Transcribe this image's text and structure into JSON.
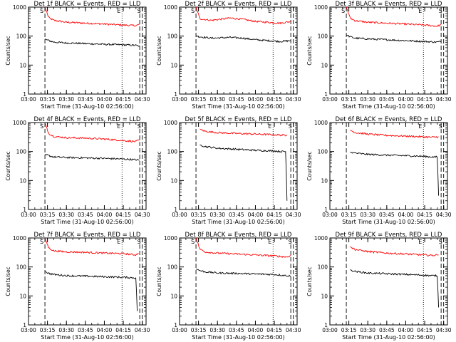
{
  "chart_data": [
    {
      "type": "line",
      "title": "Det 1f BLACK = Events, RED = LLD",
      "xlabel": "Start Time (31-Aug-10 02:56:00)",
      "ylabel": "Counts/sec",
      "yscale": "log",
      "ylim": [
        1,
        1000
      ],
      "xlim": [
        "03:00",
        "04:33"
      ],
      "x_ticks": [
        "03:00",
        "03:15",
        "03:30",
        "03:45",
        "04:00",
        "04:15",
        "04:30"
      ],
      "y_ticks": [
        "1",
        "10",
        "100",
        "1000"
      ],
      "markers": [
        {
          "time": "03:13",
          "label": "S",
          "style": "dashed"
        },
        {
          "time": "04:14",
          "label": "E",
          "style": "dotted"
        },
        {
          "time": "04:28",
          "label": "",
          "style": "dashed"
        },
        {
          "time": "04:30",
          "label": "S",
          "style": "dashed"
        }
      ],
      "series": [
        {
          "color": "#ff0000",
          "x": [
            "03:13",
            "03:16",
            "03:20",
            "03:30",
            "03:45",
            "04:00",
            "04:15",
            "04:25",
            "04:28"
          ],
          "values": [
            1000,
            430,
            350,
            300,
            280,
            260,
            240,
            230,
            260
          ]
        },
        {
          "color": "#000000",
          "x": [
            "03:13",
            "03:16",
            "03:20",
            "03:30",
            "03:45",
            "04:00",
            "04:15",
            "04:25",
            "04:28"
          ],
          "values": [
            80,
            70,
            62,
            58,
            55,
            52,
            50,
            48,
            45
          ]
        }
      ]
    },
    {
      "type": "line",
      "title": "Det 2f BLACK = Events, RED = LLD",
      "xlabel": "Start Time (31-Aug-10 02:56:00)",
      "ylabel": "Counts/sec",
      "yscale": "log",
      "ylim": [
        1,
        1000
      ],
      "xlim": [
        "03:00",
        "04:33"
      ],
      "x_ticks": [
        "03:00",
        "03:15",
        "03:30",
        "03:45",
        "04:00",
        "04:15",
        "04:30"
      ],
      "y_ticks": [
        "1",
        "10",
        "100",
        "1000"
      ],
      "markers": [
        {
          "time": "03:13",
          "label": "S",
          "style": "dashed"
        },
        {
          "time": "04:14",
          "label": "E",
          "style": "dotted"
        },
        {
          "time": "04:28",
          "label": "",
          "style": "dashed"
        },
        {
          "time": "04:30",
          "label": "S",
          "style": "dashed"
        }
      ],
      "series": [
        {
          "color": "#ff0000",
          "x": [
            "03:13",
            "03:16",
            "03:25",
            "03:40",
            "03:50",
            "04:00",
            "04:10",
            "04:20",
            "04:28"
          ],
          "values": [
            1000,
            400,
            350,
            420,
            380,
            320,
            300,
            280,
            320
          ]
        },
        {
          "color": "#000000",
          "x": [
            "03:13",
            "03:16",
            "03:25",
            "03:40",
            "03:50",
            "04:00",
            "04:10",
            "04:20",
            "04:28"
          ],
          "values": [
            100,
            95,
            85,
            90,
            85,
            75,
            70,
            65,
            70
          ]
        }
      ]
    },
    {
      "type": "line",
      "title": "Det 3f BLACK = Events, RED = LLD",
      "xlabel": "Start Time (31-Aug-10 02:56:00)",
      "ylabel": "Counts/sec",
      "yscale": "log",
      "ylim": [
        1,
        1000
      ],
      "xlim": [
        "03:00",
        "04:33"
      ],
      "x_ticks": [
        "03:00",
        "03:15",
        "03:30",
        "03:45",
        "04:00",
        "04:15",
        "04:30"
      ],
      "y_ticks": [
        "1",
        "10",
        "100",
        "1000"
      ],
      "markers": [
        {
          "time": "03:13",
          "label": "S",
          "style": "dashed"
        },
        {
          "time": "04:14",
          "label": "E",
          "style": "dotted"
        },
        {
          "time": "04:28",
          "label": "",
          "style": "dashed"
        },
        {
          "time": "04:30",
          "label": "S",
          "style": "dashed"
        }
      ],
      "series": [
        {
          "color": "#ff0000",
          "x": [
            "03:13",
            "03:16",
            "03:20",
            "03:30",
            "03:45",
            "04:00",
            "04:15",
            "04:25",
            "04:28"
          ],
          "values": [
            1000,
            420,
            340,
            300,
            280,
            260,
            240,
            220,
            250
          ]
        },
        {
          "color": "#000000",
          "x": [
            "03:13",
            "03:16",
            "03:20",
            "03:30",
            "03:45",
            "04:00",
            "04:15",
            "04:25",
            "04:28"
          ],
          "values": [
            110,
            95,
            85,
            80,
            75,
            70,
            65,
            62,
            65
          ]
        }
      ]
    },
    {
      "type": "line",
      "title": "Det 4f BLACK = Events, RED = LLD",
      "xlabel": "Start Time (31-Aug-10 02:56:00)",
      "ylabel": "Counts/sec",
      "yscale": "log",
      "ylim": [
        1,
        1000
      ],
      "xlim": [
        "03:00",
        "04:33"
      ],
      "x_ticks": [
        "03:00",
        "03:15",
        "03:30",
        "03:45",
        "04:00",
        "04:15",
        "04:30"
      ],
      "y_ticks": [
        "1",
        "10",
        "100",
        "1000"
      ],
      "markers": [
        {
          "time": "03:13",
          "label": "S",
          "style": "dashed"
        },
        {
          "time": "04:14",
          "label": "E",
          "style": "dotted"
        },
        {
          "time": "04:28",
          "label": "",
          "style": "dashed"
        },
        {
          "time": "04:30",
          "label": "S",
          "style": "dashed"
        }
      ],
      "series": [
        {
          "color": "#ff0000",
          "x": [
            "03:13",
            "03:16",
            "03:20",
            "03:30",
            "03:45",
            "04:00",
            "04:15",
            "04:25",
            "04:28"
          ],
          "values": [
            1000,
            420,
            330,
            300,
            290,
            270,
            240,
            220,
            260
          ]
        },
        {
          "color": "#000000",
          "x": [
            "03:13",
            "03:16",
            "03:20",
            "03:30",
            "03:45",
            "04:00",
            "04:15",
            "04:25",
            "04:28"
          ],
          "values": [
            80,
            72,
            65,
            62,
            60,
            58,
            55,
            52,
            50
          ]
        }
      ]
    },
    {
      "type": "line",
      "title": "Det 5f BLACK = Events, RED = LLD",
      "xlabel": "Start Time (31-Aug-10 02:56:00)",
      "ylabel": "Counts/sec",
      "yscale": "log",
      "ylim": [
        1,
        1000
      ],
      "xlim": [
        "03:00",
        "04:33"
      ],
      "x_ticks": [
        "03:00",
        "03:15",
        "03:30",
        "03:45",
        "04:00",
        "04:15",
        "04:30"
      ],
      "y_ticks": [
        "1",
        "10",
        "100",
        "1000"
      ],
      "markers": [
        {
          "time": "03:13",
          "label": "",
          "style": "dashed"
        },
        {
          "time": "04:14",
          "label": "E",
          "style": "dotted"
        },
        {
          "time": "04:28",
          "label": "",
          "style": "dashed"
        },
        {
          "time": "04:30",
          "label": "S",
          "style": "dashed"
        }
      ],
      "series": [
        {
          "color": "#ff0000",
          "x": [
            "03:16",
            "03:20",
            "03:30",
            "03:45",
            "04:00",
            "04:15",
            "04:20",
            "04:25"
          ],
          "values": [
            600,
            500,
            450,
            420,
            400,
            380,
            370,
            360
          ]
        },
        {
          "color": "#000000",
          "x": [
            "03:16",
            "03:20",
            "03:30",
            "03:45",
            "04:00",
            "04:15",
            "04:20",
            "04:24",
            "04:25"
          ],
          "values": [
            170,
            150,
            130,
            120,
            110,
            105,
            100,
            100,
            2
          ]
        }
      ]
    },
    {
      "type": "line",
      "title": "Det 6f BLACK = Events, RED = LLD",
      "xlabel": "Start Time (31-Aug-10 02:56:00)",
      "ylabel": "Counts/sec",
      "yscale": "log",
      "ylim": [
        1,
        1000
      ],
      "xlim": [
        "03:00",
        "04:33"
      ],
      "x_ticks": [
        "03:00",
        "03:15",
        "03:30",
        "03:45",
        "04:00",
        "04:15",
        "04:30"
      ],
      "y_ticks": [
        "1",
        "10",
        "100",
        "1000"
      ],
      "markers": [
        {
          "time": "03:13",
          "label": "",
          "style": "dashed"
        },
        {
          "time": "04:14",
          "label": "E",
          "style": "dotted"
        },
        {
          "time": "04:28",
          "label": "",
          "style": "dashed"
        },
        {
          "time": "04:30",
          "label": "S",
          "style": "dashed"
        }
      ],
      "series": [
        {
          "color": "#ff0000",
          "x": [
            "03:16",
            "03:20",
            "03:30",
            "03:45",
            "04:00",
            "04:15",
            "04:20",
            "04:26"
          ],
          "values": [
            550,
            450,
            400,
            360,
            340,
            320,
            310,
            320
          ]
        },
        {
          "color": "#000000",
          "x": [
            "03:16",
            "03:20",
            "03:30",
            "03:45",
            "04:00",
            "04:15",
            "04:20",
            "04:25",
            "04:26"
          ],
          "values": [
            95,
            88,
            80,
            75,
            72,
            68,
            65,
            65,
            3
          ]
        }
      ]
    },
    {
      "type": "line",
      "title": "Det 7f BLACK = Events, RED = LLD",
      "xlabel": "Start Time (31-Aug-10 02:56:00)",
      "ylabel": "Counts/sec",
      "yscale": "log",
      "ylim": [
        1,
        1000
      ],
      "xlim": [
        "03:00",
        "04:33"
      ],
      "x_ticks": [
        "03:00",
        "03:15",
        "03:30",
        "03:45",
        "04:00",
        "04:15",
        "04:30"
      ],
      "y_ticks": [
        "1",
        "10",
        "100",
        "1000"
      ],
      "markers": [
        {
          "time": "03:13",
          "label": "S",
          "style": "dashed"
        },
        {
          "time": "04:14",
          "label": "E",
          "style": "dotted"
        },
        {
          "time": "04:28",
          "label": "",
          "style": "dashed"
        },
        {
          "time": "04:30",
          "label": "S",
          "style": "dashed"
        }
      ],
      "series": [
        {
          "color": "#ff0000",
          "x": [
            "03:13",
            "03:16",
            "03:20",
            "03:30",
            "03:45",
            "04:00",
            "04:15",
            "04:25",
            "04:27"
          ],
          "values": [
            1000,
            450,
            360,
            330,
            320,
            300,
            290,
            260,
            300
          ]
        },
        {
          "color": "#000000",
          "x": [
            "03:13",
            "03:16",
            "03:20",
            "03:30",
            "03:45",
            "04:00",
            "04:15",
            "04:25",
            "04:26"
          ],
          "values": [
            70,
            60,
            55,
            50,
            48,
            46,
            44,
            42,
            3
          ]
        }
      ]
    },
    {
      "type": "line",
      "title": "Det 8f BLACK = Events, RED = LLD",
      "xlabel": "Start Time (31-Aug-10 02:56:00)",
      "ylabel": "Counts/sec",
      "yscale": "log",
      "ylim": [
        1,
        1000
      ],
      "xlim": [
        "03:00",
        "04:33"
      ],
      "x_ticks": [
        "03:00",
        "03:15",
        "03:30",
        "03:45",
        "04:00",
        "04:15",
        "04:30"
      ],
      "y_ticks": [
        "1",
        "10",
        "100",
        "1000"
      ],
      "markers": [
        {
          "time": "03:13",
          "label": "S",
          "style": "dashed"
        },
        {
          "time": "04:14",
          "label": "E",
          "style": "dotted"
        },
        {
          "time": "04:28",
          "label": "",
          "style": "dashed"
        },
        {
          "time": "04:30",
          "label": "S",
          "style": "dashed"
        }
      ],
      "series": [
        {
          "color": "#ff0000",
          "x": [
            "03:13",
            "03:16",
            "03:20",
            "03:30",
            "03:45",
            "04:00",
            "04:15",
            "04:25",
            "04:28"
          ],
          "values": [
            1000,
            420,
            330,
            300,
            280,
            260,
            240,
            220,
            250
          ]
        },
        {
          "color": "#000000",
          "x": [
            "03:13",
            "03:16",
            "03:20",
            "03:30",
            "03:45",
            "04:00",
            "04:15",
            "04:25",
            "04:28"
          ],
          "values": [
            85,
            75,
            68,
            62,
            60,
            57,
            55,
            50,
            48
          ]
        }
      ]
    },
    {
      "type": "line",
      "title": "Det 9f BLACK = Events, RED = LLD",
      "xlabel": "Start Time (31-Aug-10 02:56:00)",
      "ylabel": "Counts/sec",
      "yscale": "log",
      "ylim": [
        1,
        1000
      ],
      "xlim": [
        "03:00",
        "04:33"
      ],
      "x_ticks": [
        "03:00",
        "03:15",
        "03:30",
        "03:45",
        "04:00",
        "04:15",
        "04:30"
      ],
      "y_ticks": [
        "1",
        "10",
        "100",
        "1000"
      ],
      "markers": [
        {
          "time": "03:13",
          "label": "",
          "style": "dashed"
        },
        {
          "time": "04:14",
          "label": "E",
          "style": "dotted"
        },
        {
          "time": "04:28",
          "label": "",
          "style": "dashed"
        },
        {
          "time": "04:30",
          "label": "S",
          "style": "dashed"
        }
      ],
      "series": [
        {
          "color": "#ff0000",
          "x": [
            "03:16",
            "03:20",
            "03:30",
            "03:45",
            "04:00",
            "04:15",
            "04:20",
            "04:26"
          ],
          "values": [
            500,
            400,
            340,
            300,
            280,
            260,
            250,
            260
          ]
        },
        {
          "color": "#000000",
          "x": [
            "03:16",
            "03:20",
            "03:30",
            "03:45",
            "04:00",
            "04:15",
            "04:20",
            "04:25",
            "04:26"
          ],
          "values": [
            80,
            70,
            62,
            58,
            55,
            52,
            50,
            50,
            4
          ]
        }
      ]
    }
  ]
}
